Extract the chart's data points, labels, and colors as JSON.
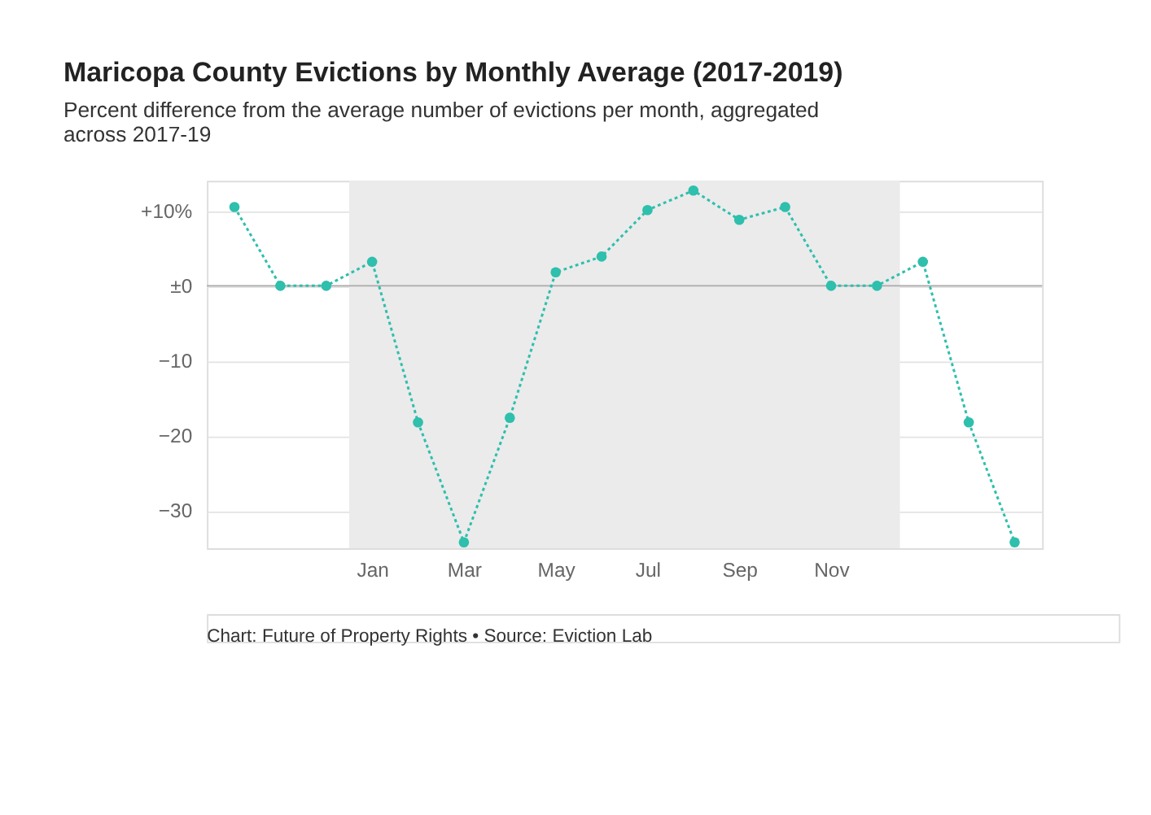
{
  "chart_data": {
    "type": "line",
    "title": "Maricopa County Evictions by Monthly Average (2017-2019)",
    "subtitle": "Percent difference from the average number of evictions per month, aggregated across 2017-19",
    "categories": [
      null,
      null,
      null,
      "Jan",
      null,
      "Mar",
      null,
      "May",
      null,
      "Jul",
      null,
      "Sep",
      null,
      "Nov",
      null,
      null,
      null,
      null
    ],
    "series": [
      {
        "color": "#2ebfad",
        "values": [
          10.5,
          0,
          0,
          3.2,
          -18.2,
          -34.2,
          -17.6,
          1.8,
          3.9,
          10.1,
          12.7,
          8.8,
          10.5,
          0,
          0,
          3.2,
          -18.2,
          -34.2
        ]
      }
    ],
    "ylim": [
      -35,
      14
    ],
    "yticks": [
      {
        "value": 10,
        "label": "+10%"
      },
      {
        "value": 0,
        "label": "±0"
      },
      {
        "value": -10,
        "label": "−10"
      },
      {
        "value": -20,
        "label": "−20"
      },
      {
        "value": -30,
        "label": "−30"
      }
    ],
    "ref_lines": [
      {
        "axis": "y",
        "value": 0,
        "color": "#aaaaaa"
      }
    ],
    "grid": "y",
    "marker": "circle",
    "line_style": "dotted",
    "annotations": [
      "Chart: Future of Property Rights • Source: Eviction Lab"
    ]
  }
}
